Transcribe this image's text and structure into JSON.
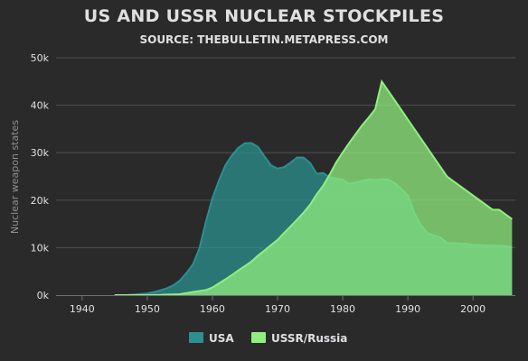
{
  "chart_data": {
    "type": "area",
    "title": "US AND USSR NUCLEAR STOCKPILES",
    "subtitle": "SOURCE: THEBULLETIN.METAPRESS.COM",
    "ylabel": "Nuclear weapon states",
    "xlabel": "",
    "xlim": [
      1936,
      2006.5
    ],
    "ylim": [
      0,
      50000
    ],
    "x_ticks": [
      1940,
      1950,
      1960,
      1970,
      1980,
      1990,
      2000
    ],
    "y_ticks": [
      0,
      10000,
      20000,
      30000,
      40000,
      50000
    ],
    "y_tick_labels": [
      "0k",
      "10k",
      "20k",
      "30k",
      "40k",
      "50k"
    ],
    "grid": true,
    "legend_position": "bottom-center",
    "series": [
      {
        "name": "USA",
        "color": "#2b908f",
        "x": [
          1945,
          1946,
          1947,
          1948,
          1949,
          1950,
          1951,
          1952,
          1953,
          1954,
          1955,
          1956,
          1957,
          1958,
          1959,
          1960,
          1961,
          1962,
          1963,
          1964,
          1965,
          1966,
          1967,
          1968,
          1969,
          1970,
          1971,
          1972,
          1973,
          1974,
          1975,
          1976,
          1977,
          1978,
          1979,
          1980,
          1981,
          1982,
          1983,
          1984,
          1985,
          1986,
          1987,
          1988,
          1989,
          1990,
          1991,
          1992,
          1993,
          1994,
          1995,
          1996,
          1997,
          1998,
          1999,
          2000,
          2001,
          2002,
          2003,
          2004,
          2005,
          2006
        ],
        "values": [
          6,
          11,
          32,
          110,
          235,
          369,
          640,
          1005,
          1436,
          2063,
          3057,
          4618,
          6444,
          9822,
          15468,
          20434,
          24126,
          27387,
          29459,
          31056,
          31982,
          32040,
          31233,
          29224,
          27342,
          26662,
          26956,
          27912,
          28999,
          28965,
          27826,
          25579,
          25722,
          24826,
          24605,
          24304,
          23464,
          23708,
          24099,
          24357,
          24237,
          24401,
          24344,
          23586,
          22380,
          21004,
          17287,
          14747,
          13076,
          12555,
          12144,
          11009,
          10950,
          10871,
          10824,
          10577,
          10526,
          10457,
          10387,
          10421,
          10294,
          10104
        ]
      },
      {
        "name": "USSR/Russia",
        "color": "#90ee7e",
        "x": [
          1945,
          1946,
          1947,
          1948,
          1949,
          1950,
          1951,
          1952,
          1953,
          1954,
          1955,
          1956,
          1957,
          1958,
          1959,
          1960,
          1961,
          1962,
          1963,
          1964,
          1965,
          1966,
          1967,
          1968,
          1969,
          1970,
          1971,
          1972,
          1973,
          1974,
          1975,
          1976,
          1977,
          1978,
          1979,
          1980,
          1981,
          1982,
          1983,
          1984,
          1985,
          1986,
          1987,
          1988,
          1989,
          1990,
          1991,
          1992,
          1993,
          1994,
          1995,
          1996,
          1997,
          1998,
          1999,
          2000,
          2001,
          2002,
          2003,
          2004,
          2005,
          2006
        ],
        "values": [
          0,
          0,
          0,
          0,
          1,
          5,
          25,
          50,
          120,
          150,
          200,
          426,
          660,
          869,
          1060,
          1605,
          2471,
          3322,
          4238,
          5221,
          6129,
          7089,
          8339,
          9399,
          10538,
          11643,
          13092,
          14478,
          15915,
          17385,
          19055,
          21205,
          23044,
          25393,
          27935,
          30062,
          32049,
          33952,
          35804,
          37431,
          39197,
          45000,
          43000,
          41000,
          39000,
          37000,
          35000,
          33000,
          31000,
          29000,
          27000,
          25000,
          24000,
          23000,
          22000,
          21000,
          20000,
          19000,
          18000,
          18000,
          17000,
          16000
        ]
      }
    ]
  },
  "legend": {
    "usa_label": "USA",
    "ussr_label": "USSR/Russia"
  }
}
